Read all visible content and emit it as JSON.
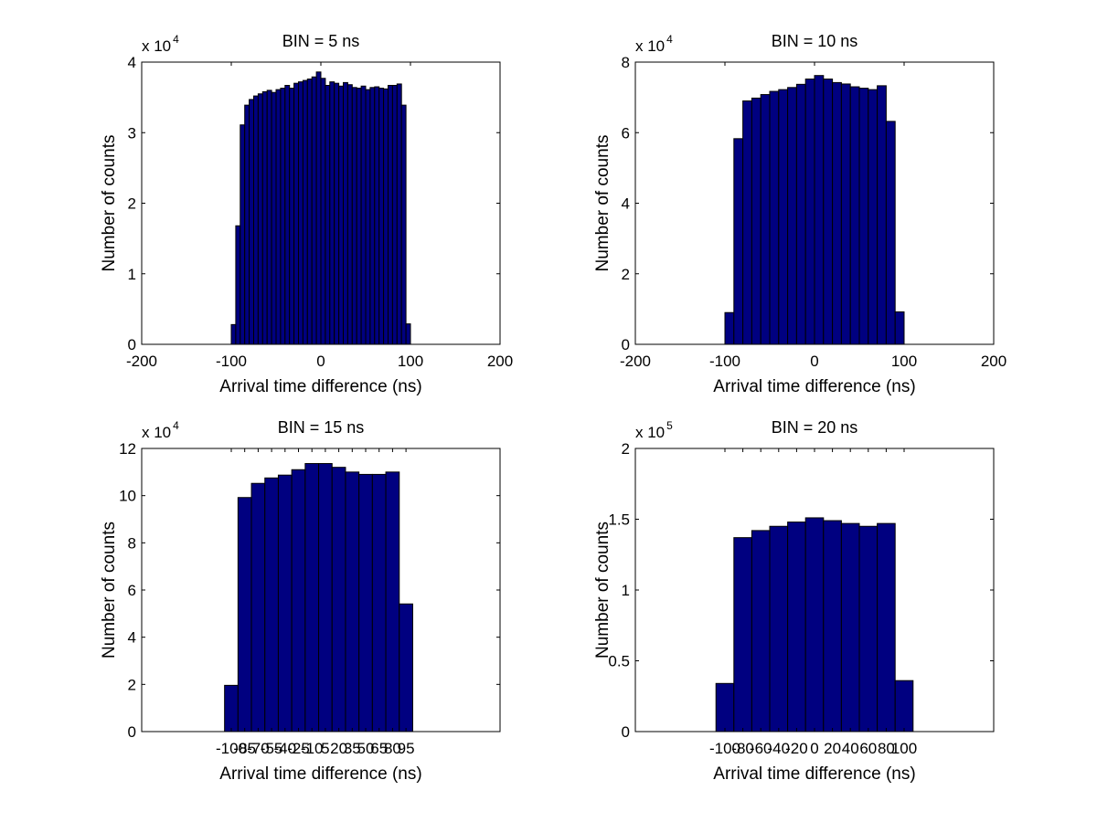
{
  "chart_data": [
    {
      "type": "bar",
      "title": "BIN = 5 ns",
      "xlabel": "Arrival time difference (ns)",
      "ylabel": "Number of counts",
      "xlim": [
        -200,
        200
      ],
      "ylim": [
        0,
        4
      ],
      "y_multiplier": "x 10",
      "y_exponent": "4",
      "bin_width": 5,
      "xticks": [
        -200,
        -100,
        0,
        100,
        200
      ],
      "xtick_labels": [
        "-200",
        "-100",
        "0",
        "100",
        "200"
      ],
      "yticks": [
        0,
        1,
        2,
        3,
        4
      ],
      "ytick_labels": [
        "0",
        "1",
        "2",
        "3",
        "4"
      ],
      "x": [
        -97.5,
        -92.5,
        -87.5,
        -82.5,
        -77.5,
        -72.5,
        -67.5,
        -62.5,
        -57.5,
        -52.5,
        -47.5,
        -42.5,
        -37.5,
        -32.5,
        -27.5,
        -22.5,
        -17.5,
        -12.5,
        -7.5,
        -2.5,
        2.5,
        7.5,
        12.5,
        17.5,
        22.5,
        27.5,
        32.5,
        37.5,
        42.5,
        47.5,
        52.5,
        57.5,
        62.5,
        67.5,
        72.5,
        77.5,
        82.5,
        87.5,
        92.5,
        97.5
      ],
      "values": [
        0.28,
        1.68,
        3.11,
        3.39,
        3.47,
        3.52,
        3.55,
        3.58,
        3.6,
        3.57,
        3.61,
        3.63,
        3.67,
        3.63,
        3.7,
        3.72,
        3.74,
        3.76,
        3.79,
        3.86,
        3.77,
        3.67,
        3.72,
        3.7,
        3.66,
        3.71,
        3.68,
        3.64,
        3.63,
        3.66,
        3.61,
        3.64,
        3.65,
        3.63,
        3.62,
        3.67,
        3.67,
        3.69,
        3.39,
        0.29
      ]
    },
    {
      "type": "bar",
      "title": "BIN = 10 ns",
      "xlabel": "Arrival time difference (ns)",
      "ylabel": "Number of counts",
      "xlim": [
        -200,
        200
      ],
      "ylim": [
        0,
        8
      ],
      "y_multiplier": "x 10",
      "y_exponent": "4",
      "bin_width": 10,
      "xticks": [
        -200,
        -100,
        0,
        100,
        200
      ],
      "xtick_labels": [
        "-200",
        "-100",
        "0",
        "100",
        "200"
      ],
      "yticks": [
        0,
        2,
        4,
        6,
        8
      ],
      "ytick_labels": [
        "0",
        "2",
        "4",
        "6",
        "8"
      ],
      "x": [
        -95,
        -85,
        -75,
        -65,
        -55,
        -45,
        -35,
        -25,
        -15,
        -5,
        5,
        15,
        25,
        35,
        45,
        55,
        65,
        75,
        85,
        95
      ],
      "values": [
        0.9,
        5.83,
        6.9,
        6.98,
        7.08,
        7.17,
        7.22,
        7.28,
        7.37,
        7.52,
        7.62,
        7.52,
        7.42,
        7.38,
        7.3,
        7.26,
        7.22,
        7.33,
        6.32,
        0.92
      ]
    },
    {
      "type": "bar",
      "title": "BIN = 15 ns",
      "xlabel": "Arrival time difference (ns)",
      "ylabel": "Number of counts",
      "xlim": [
        -200,
        200
      ],
      "ylim": [
        0,
        12
      ],
      "y_multiplier": "x 10",
      "y_exponent": "4",
      "bin_width": 15,
      "xticks": [
        -100,
        -85,
        -70,
        -55,
        -40,
        -25,
        -10,
        5,
        20,
        35,
        50,
        65,
        80,
        95
      ],
      "xtick_labels": [
        "-100",
        "-85",
        "-70",
        "-55",
        "-40",
        "-25",
        "-10",
        "5",
        "20",
        "35",
        "50",
        "65",
        "80",
        "95"
      ],
      "yticks": [
        0,
        2,
        4,
        6,
        8,
        10,
        12
      ],
      "ytick_labels": [
        "0",
        "2",
        "4",
        "6",
        "8",
        "10",
        "12"
      ],
      "x": [
        -100,
        -85,
        -70,
        -55,
        -40,
        -25,
        -10,
        5,
        20,
        35,
        50,
        65,
        80,
        95
      ],
      "values": [
        1.96,
        9.92,
        10.52,
        10.75,
        10.87,
        11.1,
        11.36,
        11.36,
        11.2,
        11.0,
        10.9,
        10.9,
        11.0,
        5.41
      ]
    },
    {
      "type": "bar",
      "title": "BIN = 20 ns",
      "xlabel": "Arrival time difference (ns)",
      "ylabel": "Number of counts",
      "xlim": [
        -200,
        200
      ],
      "ylim": [
        0,
        2
      ],
      "y_multiplier": "x 10",
      "y_exponent": "5",
      "bin_width": 20,
      "xticks": [
        -100,
        -80,
        -60,
        -40,
        -20,
        0,
        20,
        40,
        60,
        80,
        100
      ],
      "xtick_labels": [
        "-100",
        "-80",
        "-60",
        "-40",
        "-20",
        "0",
        "20",
        "40",
        "60",
        "80",
        "100"
      ],
      "yticks": [
        0,
        0.5,
        1,
        1.5,
        2
      ],
      "ytick_labels": [
        "0",
        "0.5",
        "1",
        "1.5",
        "2"
      ],
      "x": [
        -100,
        -80,
        -60,
        -40,
        -20,
        0,
        20,
        40,
        60,
        80,
        100
      ],
      "values": [
        0.34,
        1.37,
        1.42,
        1.45,
        1.48,
        1.51,
        1.49,
        1.47,
        1.45,
        1.47,
        0.36
      ]
    }
  ]
}
